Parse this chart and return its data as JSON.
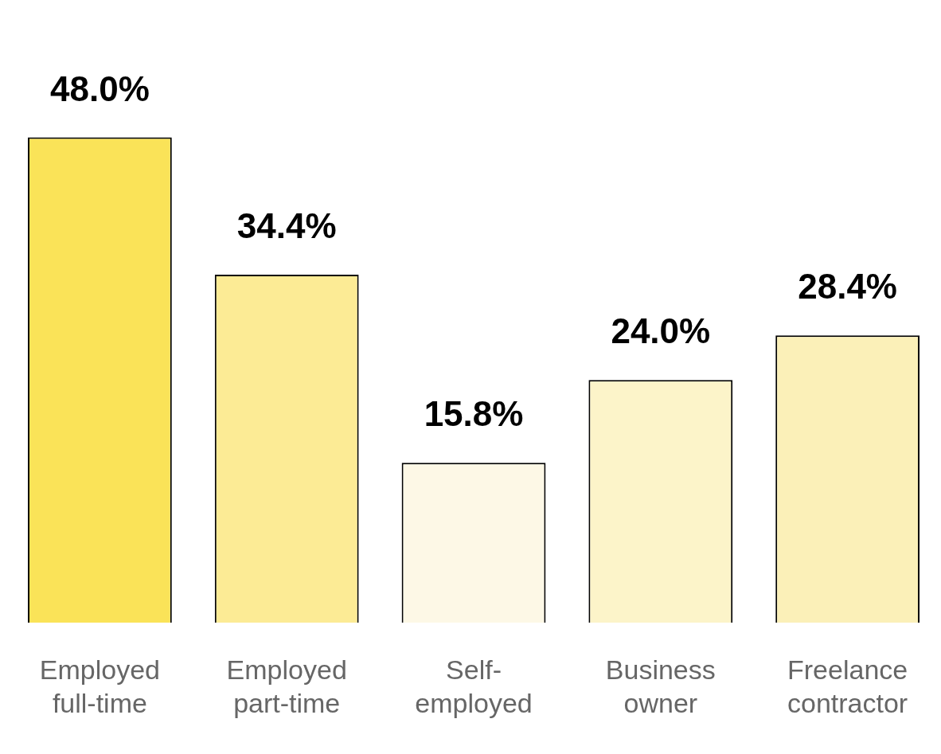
{
  "chart_data": {
    "type": "bar",
    "categories": [
      "Employed full-time",
      "Employed part-time",
      "Self-employed",
      "Business owner",
      "Freelance contractor"
    ],
    "values": [
      48.0,
      34.4,
      15.8,
      24.0,
      28.4
    ],
    "colors": [
      "#fae358",
      "#fceb95",
      "#fdf8e6",
      "#fcf4c9",
      "#fbf0b8"
    ],
    "value_labels": [
      "48.0%",
      "34.4%",
      "15.8%",
      "24.0%",
      "28.4%"
    ],
    "relative": false,
    "grid": false,
    "legend": false
  }
}
